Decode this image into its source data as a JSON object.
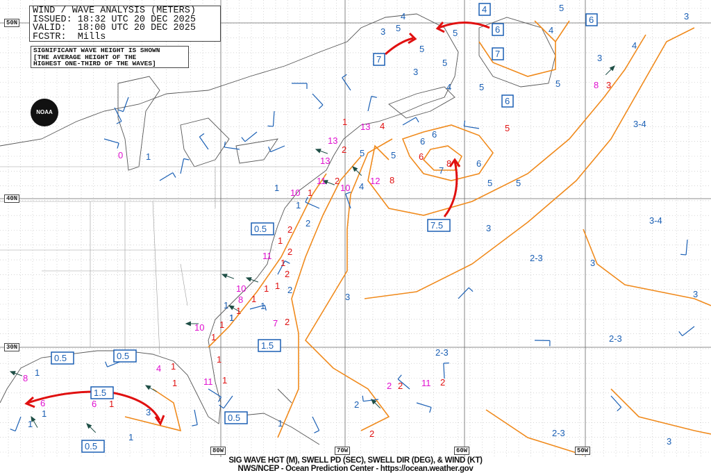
{
  "header": {
    "title": "WIND / WAVE ANALYSIS (METERS)",
    "issued": "ISSUED: 18:32 UTC 20 DEC 2025",
    "valid": "VALID:  18:00 UTC 20 DEC 2025",
    "forecaster": "FCSTR:  Mills"
  },
  "note": {
    "line1": "SIGNIFICANT WAVE HEIGHT IS SHOWN",
    "line2": "[THE AVERAGE HEIGHT OF THE",
    "line3": "HIGHEST ONE-THIRD OF THE WAVES]"
  },
  "logo": "NOAA",
  "latitudes": [
    "50N",
    "40N",
    "30N"
  ],
  "longitudes": [
    "80W",
    "70W",
    "60W",
    "50W"
  ],
  "footer": {
    "line1": "SIG WAVE HGT (M), SWELL PD (SEC), SWELL DIR (DEG), & WIND (KT)",
    "line2": "NWS/NCEP - Ocean Prediction Center - https://ocean.weather.gov"
  },
  "colors": {
    "contour": "#f08a1c",
    "label": "#1a5fb4",
    "height": "#e01010",
    "period": "#e010d0",
    "arrow": "#e01010",
    "wind_barb": "#1a5fb4",
    "swell_arrow": "#1f4f46"
  },
  "boxed_labels": [
    "4",
    "6",
    "6",
    "7",
    "7",
    "6",
    "7.5",
    "0.5",
    "1.5",
    "0.5",
    "0.5",
    "1.5",
    "0.5",
    "0.5"
  ],
  "contour_labels": [
    "4",
    "5",
    "5",
    "4",
    "5",
    "3",
    "3",
    "5",
    "5",
    "4",
    "5",
    "5",
    "3",
    "3",
    "6",
    "5",
    "6",
    "4",
    "3",
    "5",
    "5",
    "6",
    "7",
    "5",
    "4",
    "3",
    "3",
    "2-3",
    "3-4",
    "3-4",
    "3",
    "2-3",
    "2-3",
    "2",
    "2-3",
    "3",
    "3",
    "1",
    "1",
    "2",
    "1",
    "2",
    "1",
    "1",
    "1",
    "1",
    "1",
    "1",
    "1",
    "1",
    "1"
  ],
  "wave_heights": [
    "8",
    "3",
    "4",
    "5",
    "6",
    "8",
    "1",
    "2",
    "2",
    "1",
    "2",
    "1",
    "2",
    "1",
    "2",
    "1",
    "1",
    "1",
    "1",
    "1",
    "2",
    "2",
    "2",
    "2",
    "1",
    "1",
    "1",
    "1",
    "1",
    "1"
  ],
  "swell_periods": [
    "8",
    "13",
    "13",
    "13",
    "12",
    "11",
    "10",
    "10",
    "0",
    "11",
    "10",
    "8",
    "10",
    "7",
    "2",
    "11",
    "4",
    "11",
    "6",
    "8",
    "6"
  ]
}
